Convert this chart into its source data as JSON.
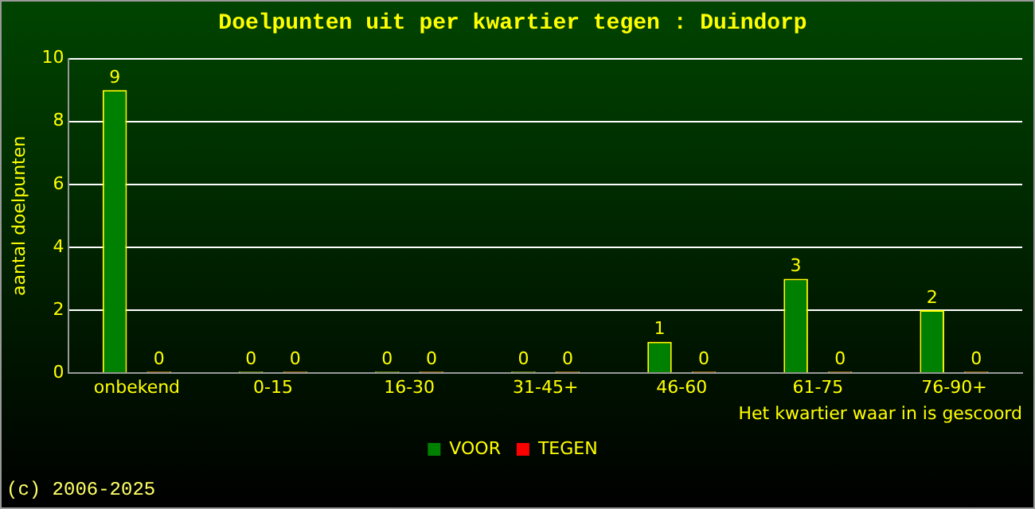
{
  "chart_data": {
    "type": "bar",
    "title": "Doelpunten uit per kwartier tegen : Duindorp",
    "categories": [
      "onbekend",
      "0-15",
      "16-30",
      "31-45+",
      "46-60",
      "61-75",
      "76-90+"
    ],
    "series": [
      {
        "name": "VOOR",
        "color": "#008000",
        "values": [
          9,
          0,
          0,
          0,
          1,
          3,
          2
        ]
      },
      {
        "name": "TEGEN",
        "color": "#ff0000",
        "values": [
          0,
          0,
          0,
          0,
          0,
          0,
          0
        ]
      }
    ],
    "ylabel": "aantal doelpunten",
    "xlabel": "Het kwartier waar in is gescoord",
    "ylim": [
      0,
      10
    ],
    "yticks": [
      0,
      2,
      4,
      6,
      8,
      10
    ],
    "grid": "y",
    "legend": "bottom",
    "data_labels": true,
    "annotations": [
      "(c) 2006-2025"
    ]
  }
}
